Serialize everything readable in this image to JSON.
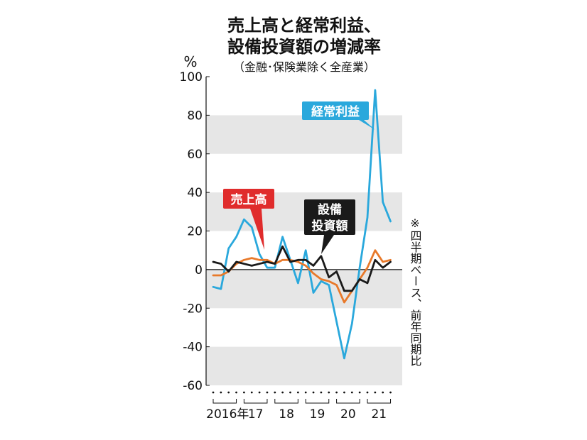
{
  "chart_data": {
    "type": "line",
    "title_lines": [
      "売上高と経常利益、",
      "設備投資額の増減率"
    ],
    "subtitle": "（金融･保険業除く全産業）",
    "ylabel": "%",
    "ylim": [
      -60,
      100
    ],
    "yticks": [
      -60,
      -40,
      -20,
      0,
      20,
      40,
      60,
      80,
      100
    ],
    "grid": "alternating gray bands",
    "x": [
      "2016Q1",
      "2016Q2",
      "2016Q3",
      "2016Q4",
      "2017Q1",
      "2017Q2",
      "2017Q3",
      "2017Q4",
      "2018Q1",
      "2018Q2",
      "2018Q3",
      "2018Q4",
      "2019Q1",
      "2019Q2",
      "2019Q3",
      "2019Q4",
      "2020Q1",
      "2020Q2",
      "2020Q3",
      "2020Q4",
      "2021Q1",
      "2021Q2",
      "2021Q3",
      "2021Q4"
    ],
    "xtick_labels": [
      "2016年",
      "17",
      "18",
      "19",
      "20",
      "21"
    ],
    "series": [
      {
        "name": "経常利益",
        "color": "#2aa8dc",
        "values": [
          -9,
          -10,
          11,
          17,
          26,
          22,
          8,
          1,
          1,
          17,
          5,
          -7,
          10,
          -12,
          -6,
          -8,
          -27,
          -46,
          -28,
          1,
          27,
          93,
          35,
          25
        ]
      },
      {
        "name": "売上高",
        "color": "#e8792a",
        "values": [
          -3,
          -3,
          -1,
          3,
          5,
          6,
          5,
          5,
          3,
          5,
          5,
          4,
          2,
          -2,
          -5,
          -6,
          -8,
          -17,
          -11,
          -5,
          1,
          10,
          4,
          5
        ]
      },
      {
        "name": "設備投資額",
        "color": "#1a1a1a",
        "values": [
          4,
          3,
          -1,
          4,
          3,
          2,
          3,
          4,
          3,
          12,
          4,
          5,
          5,
          2,
          7,
          -4,
          -1,
          -11,
          -11,
          -5,
          -7,
          5,
          1,
          4
        ]
      }
    ],
    "callouts": [
      {
        "series": "経常利益",
        "lines": [
          "経常利益"
        ],
        "bg": "#2aa8dc"
      },
      {
        "series": "売上高",
        "lines": [
          "売上高"
        ],
        "bg": "#e02c2c"
      },
      {
        "series": "設備投資額",
        "lines": [
          "設備",
          "投資額"
        ],
        "bg": "#1a1a1a"
      }
    ],
    "note": "※四半期ベース、前年同期比"
  }
}
